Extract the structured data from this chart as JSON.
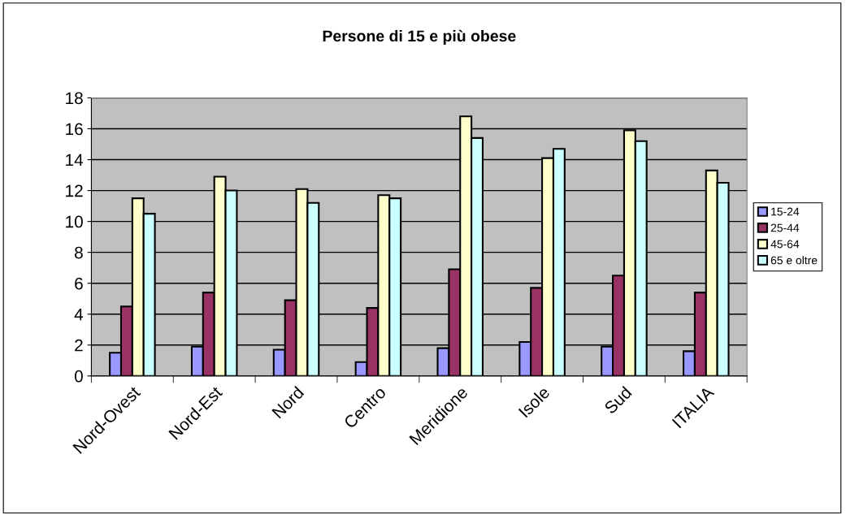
{
  "chart_data": {
    "type": "bar",
    "title": "Persone di 15 e più obese",
    "categories": [
      "Nord-Ovest",
      "Nord-Est",
      "Nord",
      "Centro",
      "Meridione",
      "Isole",
      "Sud",
      "ITALIA"
    ],
    "series": [
      {
        "name": "15-24",
        "color": "#9999ff",
        "values": [
          1.5,
          1.9,
          1.7,
          0.9,
          1.8,
          2.2,
          1.9,
          1.6
        ]
      },
      {
        "name": "25-44",
        "color": "#993366",
        "values": [
          4.5,
          5.4,
          4.9,
          4.4,
          6.9,
          5.7,
          6.5,
          5.4
        ]
      },
      {
        "name": "45-64",
        "color": "#ffffcc",
        "values": [
          11.5,
          12.9,
          12.1,
          11.7,
          16.8,
          14.1,
          15.9,
          13.3
        ]
      },
      {
        "name": "65 e oltre",
        "color": "#ccffff",
        "values": [
          10.5,
          12.0,
          11.2,
          11.5,
          15.4,
          14.7,
          15.2,
          12.5
        ]
      }
    ],
    "ylim": [
      0,
      18
    ],
    "yticks": [
      0,
      2,
      4,
      6,
      8,
      10,
      12,
      14,
      16,
      18
    ],
    "grid": "y",
    "legend": "right"
  }
}
